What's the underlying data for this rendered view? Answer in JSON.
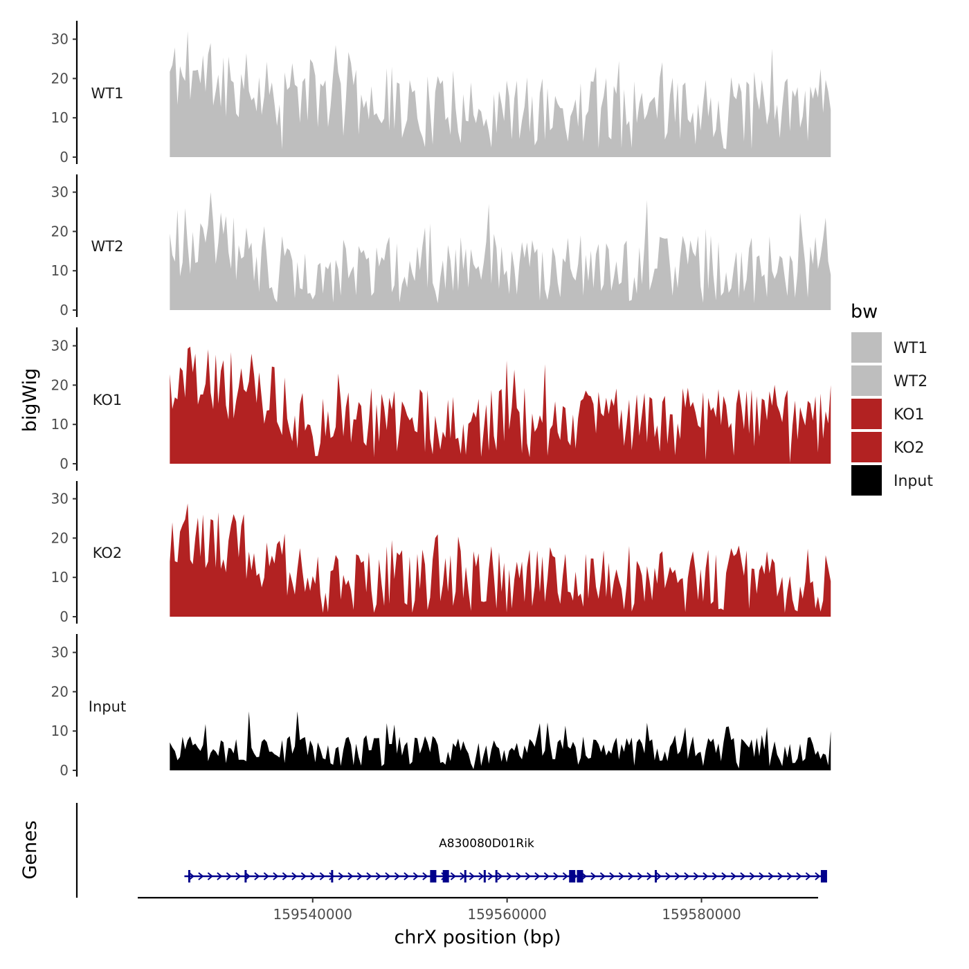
{
  "chart_data": {
    "type": "area",
    "ylabel": "bigWig",
    "xlabel": "chrX position (bp)",
    "xlim": [
      159522000,
      159592000
    ],
    "data_x_range": [
      159525300,
      159593300
    ],
    "ylim": [
      0,
      33
    ],
    "y_ticks": [
      0,
      10,
      20,
      30
    ],
    "x_ticks": [
      {
        "value": 159540000,
        "label": "159540000"
      },
      {
        "value": 159560000,
        "label": "159560000"
      },
      {
        "value": 159580000,
        "label": "159580000"
      }
    ],
    "bin_count": 260,
    "series": [
      {
        "name": "WT1",
        "color": "#bebebe",
        "seed": 11,
        "base": 11.5,
        "amp": 0.82,
        "trend": [
          [
            0,
            10
          ],
          [
            0.15,
            6
          ],
          [
            0.4,
            0
          ],
          [
            1,
            0
          ]
        ],
        "peaks": [
          [
            0.026,
            32
          ],
          [
            0.063,
            29
          ],
          [
            0.035,
            22
          ],
          [
            0.337,
            23
          ],
          [
            0.43,
            22
          ],
          [
            0.643,
            23
          ],
          [
            0.77,
            19
          ],
          [
            0.78,
            19
          ],
          [
            0.96,
            17
          ],
          [
            0.97,
            18
          ]
        ],
        "dips": [
          [
            0.17,
            2
          ],
          [
            0.84,
            2
          ],
          [
            0.87,
            4
          ]
        ],
        "end_value": 12
      },
      {
        "name": "WT2",
        "color": "#bebebe",
        "seed": 23,
        "base": 10.5,
        "amp": 0.85,
        "trend": [
          [
            0,
            7
          ],
          [
            0.1,
            6
          ],
          [
            0.15,
            0
          ],
          [
            1,
            0
          ]
        ],
        "peaks": [
          [
            0.063,
            30
          ],
          [
            0.117,
            21
          ],
          [
            0.395,
            22
          ],
          [
            0.388,
            21
          ],
          [
            0.342,
            17
          ],
          [
            0.58,
            16
          ],
          [
            0.66,
            17
          ]
        ],
        "dips": [
          [
            0.16,
            3
          ],
          [
            0.19,
            3
          ],
          [
            0.22,
            4
          ]
        ],
        "end_value": 9
      },
      {
        "name": "KO1",
        "color": "#b22222",
        "seed": 37,
        "base": 10.5,
        "amp": 0.85,
        "trend": [
          [
            0,
            12
          ],
          [
            0.13,
            8
          ],
          [
            0.2,
            0
          ],
          [
            1,
            0
          ]
        ],
        "peaks": [
          [
            0.04,
            28
          ],
          [
            0.124,
            28
          ],
          [
            0.2,
            18
          ],
          [
            0.5,
            19
          ],
          [
            0.725,
            17
          ],
          [
            0.83,
            19
          ],
          [
            0.86,
            19
          ],
          [
            0.965,
            16
          ],
          [
            1.0,
            20
          ]
        ],
        "dips": [
          [
            0.225,
            2
          ],
          [
            0.81,
            1
          ],
          [
            0.94,
            0.2
          ]
        ],
        "end_value": 20
      },
      {
        "name": "KO2",
        "color": "#b22222",
        "seed": 53,
        "base": 9.5,
        "amp": 0.9,
        "trend": [
          [
            0,
            12
          ],
          [
            0.12,
            8
          ],
          [
            0.2,
            0
          ],
          [
            1,
            0
          ]
        ],
        "peaks": [
          [
            0.005,
            24
          ],
          [
            0.05,
            26
          ],
          [
            0.4,
            20
          ],
          [
            0.375,
            16
          ],
          [
            0.6,
            16
          ],
          [
            0.815,
            17
          ],
          [
            0.857,
            16
          ]
        ],
        "dips": [
          [
            0.23,
            1
          ],
          [
            0.93,
            1
          ]
        ],
        "end_value": 9
      },
      {
        "name": "Input",
        "color": "#000000",
        "seed": 71,
        "base": 5.0,
        "amp": 0.8,
        "trend": [
          [
            0,
            0
          ],
          [
            1,
            0
          ]
        ],
        "peaks": [
          [
            0.118,
            15
          ],
          [
            0.192,
            15
          ],
          [
            0.327,
            12
          ],
          [
            0.558,
            12
          ],
          [
            0.78,
            11
          ],
          [
            0.84,
            11
          ],
          [
            1.0,
            10
          ]
        ],
        "dips": [
          [
            0.458,
            0.3
          ],
          [
            0.86,
            0.5
          ]
        ],
        "end_value": 10
      }
    ],
    "legend": {
      "title": "bw",
      "position": "right"
    }
  },
  "tracks": [
    {
      "label": "WT1"
    },
    {
      "label": "WT2"
    },
    {
      "label": "KO1"
    },
    {
      "label": "KO2"
    },
    {
      "label": "Input"
    }
  ],
  "genes": {
    "ylabel": "Genes",
    "gene_name": "A830080D01Rik",
    "color": "#00008b",
    "strand": "+",
    "start": 159526800,
    "end": 159592800,
    "exons": [
      159527300,
      159533100,
      159542000,
      159552400,
      159553700,
      159555700,
      159557700,
      159558900,
      159566700,
      159567500,
      159575300,
      159592600
    ]
  },
  "legend_items": [
    {
      "label": "WT1",
      "color": "#bebebe"
    },
    {
      "label": "WT2",
      "color": "#bebebe"
    },
    {
      "label": "KO1",
      "color": "#b22222"
    },
    {
      "label": "KO2",
      "color": "#b22222"
    },
    {
      "label": "Input",
      "color": "#000000"
    }
  ]
}
